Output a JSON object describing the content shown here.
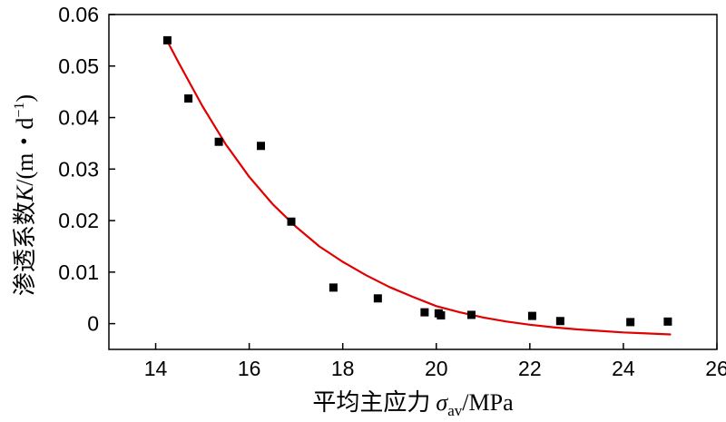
{
  "chart_data": {
    "type": "scatter",
    "title": "",
    "xlabel": {
      "text": "平均主应力",
      "symbol": "σ",
      "subscript": "av",
      "unit": "/MPa"
    },
    "ylabel": {
      "text": "渗透系数",
      "symbol": "K",
      "unit_open": "/(m・d",
      "unit_sup": "−1",
      "unit_close": ")"
    },
    "xlim": [
      13,
      26
    ],
    "ylim": [
      -0.005,
      0.06
    ],
    "x_ticks": [
      14,
      16,
      18,
      20,
      22,
      24,
      26
    ],
    "x_tick_labels": [
      "14",
      "16",
      "18",
      "20",
      "22",
      "24",
      "26"
    ],
    "y_ticks": [
      0,
      0.01,
      0.02,
      0.03,
      0.04,
      0.05,
      0.06
    ],
    "y_tick_labels": [
      "0",
      "0.01",
      "0.02",
      "0.03",
      "0.04",
      "0.05",
      "0.06"
    ],
    "grid": false,
    "legend": "none",
    "series": [
      {
        "kind": "scatter",
        "marker": "square",
        "color": "#000000",
        "x": [
          14.25,
          14.7,
          15.35,
          16.25,
          16.9,
          17.8,
          18.75,
          19.75,
          20.05,
          20.1,
          20.75,
          22.05,
          22.65,
          24.15,
          24.95
        ],
        "y": [
          0.055,
          0.0437,
          0.0353,
          0.0345,
          0.0198,
          0.007,
          0.0049,
          0.0022,
          0.002,
          0.0016,
          0.0017,
          0.0015,
          0.0005,
          0.0003,
          0.0004
        ]
      },
      {
        "kind": "line",
        "color": "#e00000",
        "x": [
          14.25,
          14.5,
          15.0,
          15.5,
          16.0,
          16.5,
          17.0,
          17.5,
          18.0,
          18.5,
          19.0,
          19.5,
          20.0,
          20.5,
          21.0,
          21.5,
          22.0,
          22.5,
          23.0,
          23.5,
          24.0,
          24.5,
          25.0
        ],
        "y": [
          0.0548,
          0.0505,
          0.0422,
          0.0348,
          0.0285,
          0.0232,
          0.0188,
          0.015,
          0.012,
          0.0094,
          0.0071,
          0.0052,
          0.0034,
          0.0022,
          0.0012,
          0.0004,
          -0.0002,
          -0.0007,
          -0.0011,
          -0.0014,
          -0.0017,
          -0.0019,
          -0.0021
        ]
      }
    ]
  }
}
